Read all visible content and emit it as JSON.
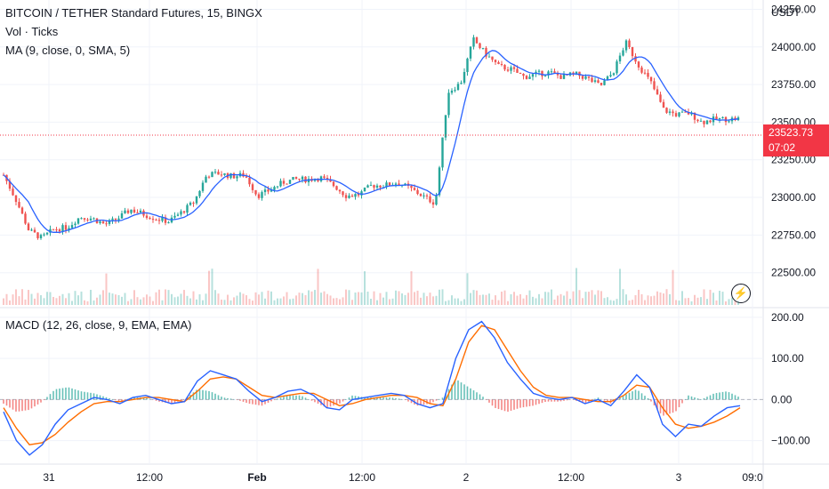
{
  "header": {
    "title": "BITCOIN / TETHER Standard Futures, 15, BINGX",
    "volume_label": "Vol · Ticks",
    "ma_label": "MA (9, close, 0, SMA, 5)",
    "macd_label": "MACD (12, 26, close, 9, EMA, EMA)"
  },
  "price_axis": {
    "currency": "USDT",
    "current_price": "23523.73",
    "countdown": "07:02",
    "colors": {
      "up": "#26a69a",
      "down": "#ef5350",
      "ma": "#2962ff",
      "signal": "#ff6d00"
    }
  },
  "icons": {
    "flash": "lightning-bolt-icon"
  },
  "chart_data": {
    "type": "candlestick",
    "timeframe": "15",
    "price_axis": {
      "ticks": [
        22500,
        22750,
        23000,
        23250,
        23500,
        23750,
        24000,
        24250
      ],
      "tick_labels": [
        "22500.00",
        "22750.00",
        "23000.00",
        "23250.00",
        "23500.00",
        "23750.00",
        "24000.00",
        "24250.00"
      ],
      "ylim": [
        22380,
        24300
      ]
    },
    "time_axis": {
      "labels": [
        "31",
        "12:00",
        "Feb",
        "12:00",
        "2",
        "12:00",
        "3",
        "09:0"
      ]
    },
    "price_path": [
      [
        0,
        23150
      ],
      [
        1,
        22980
      ],
      [
        2,
        22780
      ],
      [
        3,
        22730
      ],
      [
        4,
        22790
      ],
      [
        5,
        22800
      ],
      [
        6,
        22870
      ],
      [
        7,
        22860
      ],
      [
        8,
        22820
      ],
      [
        9,
        22860
      ],
      [
        10,
        22920
      ],
      [
        11,
        22890
      ],
      [
        12,
        22860
      ],
      [
        13,
        22840
      ],
      [
        14,
        22900
      ],
      [
        15,
        22970
      ],
      [
        16,
        23150
      ],
      [
        17,
        23160
      ],
      [
        18,
        23140
      ],
      [
        19,
        23150
      ],
      [
        20,
        23010
      ],
      [
        21,
        23050
      ],
      [
        22,
        23100
      ],
      [
        23,
        23120
      ],
      [
        24,
        23120
      ],
      [
        25,
        23130
      ],
      [
        26,
        23080
      ],
      [
        27,
        23010
      ],
      [
        28,
        23020
      ],
      [
        29,
        23080
      ],
      [
        30,
        23080
      ],
      [
        31,
        23100
      ],
      [
        32,
        23060
      ],
      [
        33,
        23010
      ],
      [
        34,
        22960
      ],
      [
        35,
        23700
      ],
      [
        36,
        23760
      ],
      [
        37,
        24050
      ],
      [
        38,
        23950
      ],
      [
        39,
        23870
      ],
      [
        40,
        23850
      ],
      [
        41,
        23800
      ],
      [
        42,
        23820
      ],
      [
        43,
        23830
      ],
      [
        44,
        23800
      ],
      [
        45,
        23820
      ],
      [
        46,
        23790
      ],
      [
        47,
        23740
      ],
      [
        48,
        23830
      ],
      [
        49,
        24030
      ],
      [
        50,
        23880
      ],
      [
        51,
        23760
      ],
      [
        52,
        23580
      ],
      [
        53,
        23550
      ],
      [
        54,
        23560
      ],
      [
        55,
        23500
      ],
      [
        56,
        23520
      ],
      [
        57,
        23520
      ],
      [
        58,
        23523.73
      ]
    ],
    "macd_axis": {
      "ticks": [
        -100,
        0,
        100,
        200
      ],
      "tick_labels": [
        "−100.00",
        "0.00",
        "100.00",
        "200.00"
      ],
      "ylim": [
        -155,
        215
      ]
    },
    "series": [
      {
        "name": "MACD",
        "values": [
          [
            0,
            -30
          ],
          [
            1,
            -100
          ],
          [
            2,
            -135
          ],
          [
            3,
            -110
          ],
          [
            4,
            -60
          ],
          [
            5,
            -25
          ],
          [
            6,
            -10
          ],
          [
            7,
            5
          ],
          [
            8,
            0
          ],
          [
            9,
            -10
          ],
          [
            10,
            5
          ],
          [
            11,
            10
          ],
          [
            12,
            0
          ],
          [
            13,
            -10
          ],
          [
            14,
            -5
          ],
          [
            15,
            45
          ],
          [
            16,
            70
          ],
          [
            17,
            60
          ],
          [
            18,
            50
          ],
          [
            19,
            20
          ],
          [
            20,
            -5
          ],
          [
            21,
            5
          ],
          [
            22,
            20
          ],
          [
            23,
            25
          ],
          [
            24,
            10
          ],
          [
            25,
            -20
          ],
          [
            26,
            -25
          ],
          [
            27,
            0
          ],
          [
            28,
            5
          ],
          [
            29,
            10
          ],
          [
            30,
            15
          ],
          [
            31,
            10
          ],
          [
            32,
            -10
          ],
          [
            33,
            -20
          ],
          [
            34,
            -10
          ],
          [
            35,
            100
          ],
          [
            36,
            170
          ],
          [
            37,
            190
          ],
          [
            38,
            150
          ],
          [
            39,
            90
          ],
          [
            40,
            50
          ],
          [
            41,
            15
          ],
          [
            42,
            5
          ],
          [
            43,
            0
          ],
          [
            44,
            5
          ],
          [
            45,
            -10
          ],
          [
            46,
            0
          ],
          [
            47,
            -15
          ],
          [
            48,
            20
          ],
          [
            49,
            60
          ],
          [
            50,
            30
          ],
          [
            51,
            -60
          ],
          [
            52,
            -90
          ],
          [
            53,
            -60
          ],
          [
            54,
            -65
          ],
          [
            55,
            -40
          ],
          [
            56,
            -20
          ],
          [
            57,
            -15
          ]
        ]
      },
      {
        "name": "Signal",
        "values": [
          [
            0,
            -20
          ],
          [
            1,
            -70
          ],
          [
            2,
            -110
          ],
          [
            3,
            -105
          ],
          [
            4,
            -85
          ],
          [
            5,
            -55
          ],
          [
            6,
            -30
          ],
          [
            7,
            -10
          ],
          [
            8,
            -5
          ],
          [
            9,
            -5
          ],
          [
            10,
            0
          ],
          [
            11,
            5
          ],
          [
            12,
            5
          ],
          [
            13,
            0
          ],
          [
            14,
            -5
          ],
          [
            15,
            20
          ],
          [
            16,
            50
          ],
          [
            17,
            55
          ],
          [
            18,
            50
          ],
          [
            19,
            30
          ],
          [
            20,
            10
          ],
          [
            21,
            5
          ],
          [
            22,
            10
          ],
          [
            23,
            15
          ],
          [
            24,
            15
          ],
          [
            25,
            0
          ],
          [
            26,
            -15
          ],
          [
            27,
            -10
          ],
          [
            28,
            0
          ],
          [
            29,
            5
          ],
          [
            30,
            10
          ],
          [
            31,
            10
          ],
          [
            32,
            5
          ],
          [
            33,
            -10
          ],
          [
            34,
            -15
          ],
          [
            35,
            50
          ],
          [
            36,
            140
          ],
          [
            37,
            180
          ],
          [
            38,
            170
          ],
          [
            39,
            120
          ],
          [
            40,
            70
          ],
          [
            41,
            30
          ],
          [
            42,
            10
          ],
          [
            43,
            5
          ],
          [
            44,
            5
          ],
          [
            45,
            0
          ],
          [
            46,
            -5
          ],
          [
            47,
            -5
          ],
          [
            48,
            10
          ],
          [
            49,
            35
          ],
          [
            50,
            30
          ],
          [
            51,
            -20
          ],
          [
            52,
            -60
          ],
          [
            53,
            -70
          ],
          [
            54,
            -65
          ],
          [
            55,
            -55
          ],
          [
            56,
            -40
          ],
          [
            57,
            -20
          ]
        ]
      }
    ]
  }
}
